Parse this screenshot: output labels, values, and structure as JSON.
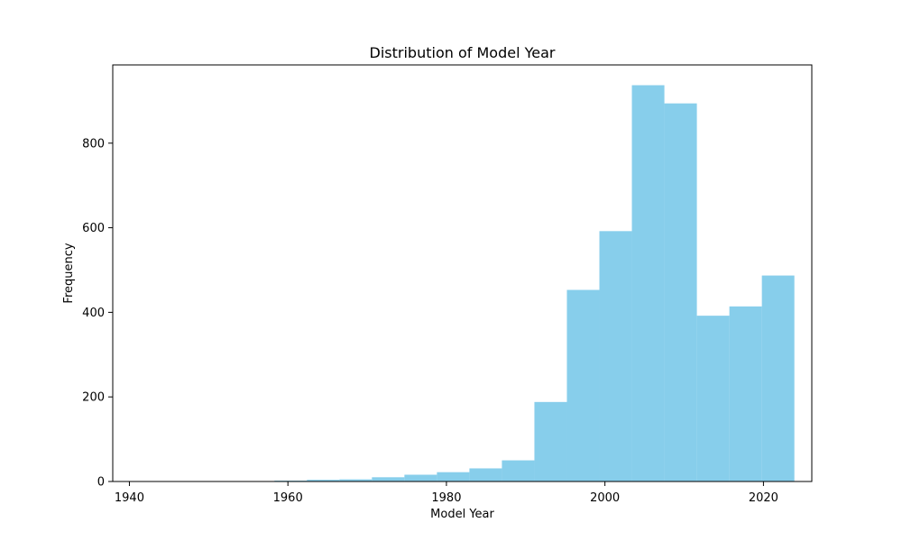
{
  "chart_data": {
    "type": "bar",
    "title": "Distribution of Model Year",
    "xlabel": "Model Year",
    "ylabel": "Frequency",
    "xlim": [
      1937.9,
      2026.1
    ],
    "ylim": [
      0,
      985
    ],
    "x_ticks": [
      1940,
      1960,
      1980,
      2000,
      2020
    ],
    "y_ticks": [
      0,
      200,
      400,
      600,
      800
    ],
    "bins": [
      {
        "start": 1941.9,
        "end": 1946.0,
        "value": 1
      },
      {
        "start": 1946.0,
        "end": 1950.1,
        "value": 0
      },
      {
        "start": 1950.1,
        "end": 1954.2,
        "value": 0
      },
      {
        "start": 1954.2,
        "end": 1958.3,
        "value": 1
      },
      {
        "start": 1958.3,
        "end": 1962.4,
        "value": 2
      },
      {
        "start": 1962.4,
        "end": 1966.5,
        "value": 4
      },
      {
        "start": 1966.5,
        "end": 1970.6,
        "value": 5
      },
      {
        "start": 1970.6,
        "end": 1974.7,
        "value": 10
      },
      {
        "start": 1974.7,
        "end": 1978.8,
        "value": 16
      },
      {
        "start": 1978.8,
        "end": 1982.9,
        "value": 22
      },
      {
        "start": 1982.9,
        "end": 1987.0,
        "value": 31
      },
      {
        "start": 1987.0,
        "end": 1991.1,
        "value": 50
      },
      {
        "start": 1991.1,
        "end": 1995.2,
        "value": 188
      },
      {
        "start": 1995.2,
        "end": 1999.3,
        "value": 453
      },
      {
        "start": 1999.3,
        "end": 2003.4,
        "value": 592
      },
      {
        "start": 2003.4,
        "end": 2007.5,
        "value": 937
      },
      {
        "start": 2007.5,
        "end": 2011.6,
        "value": 894
      },
      {
        "start": 2011.6,
        "end": 2015.7,
        "value": 392
      },
      {
        "start": 2015.7,
        "end": 2019.8,
        "value": 414
      },
      {
        "start": 2019.8,
        "end": 2023.9,
        "value": 487
      }
    ],
    "bar_color": "#87ceeb",
    "grid": false,
    "legend": "none"
  }
}
